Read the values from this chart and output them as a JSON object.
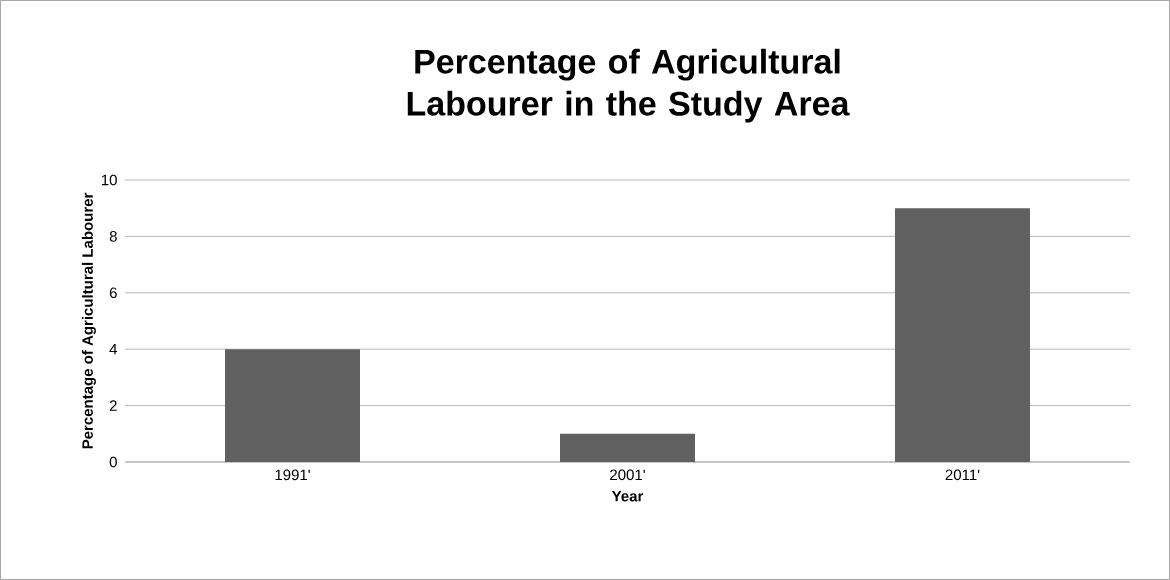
{
  "chart_data": {
    "type": "bar",
    "title": "Percentage of Agricultural Labourer in the Study Area",
    "xlabel": "Year",
    "ylabel": "Percentage of Agricultural Labourer",
    "categories": [
      "1991'",
      "2001'",
      "2011'"
    ],
    "values": [
      4,
      1,
      9
    ],
    "color": "#606060",
    "ylim": [
      0,
      10
    ],
    "yticks": [
      0,
      2,
      4,
      6,
      8,
      10
    ],
    "grid": "y"
  }
}
